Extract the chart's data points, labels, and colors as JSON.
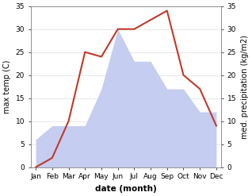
{
  "months": [
    "Jan",
    "Feb",
    "Mar",
    "Apr",
    "May",
    "Jun",
    "Jul",
    "Aug",
    "Sep",
    "Oct",
    "Nov",
    "Dec"
  ],
  "temp": [
    0,
    2,
    10,
    25,
    24,
    30,
    30,
    32,
    34,
    20,
    17,
    9
  ],
  "precip": [
    6,
    9,
    9,
    9,
    17,
    30,
    23,
    23,
    17,
    17,
    12,
    12
  ],
  "temp_color": "#c0392b",
  "precip_fill_color": "#c5cdf0",
  "ylim_left": [
    0,
    35
  ],
  "ylim_right": [
    0,
    35
  ],
  "yticks": [
    0,
    5,
    10,
    15,
    20,
    25,
    30,
    35
  ],
  "ylabel_left": "max temp (C)",
  "ylabel_right": "med. precipitation (kg/m2)",
  "xlabel": "date (month)",
  "bg_color": "#ffffff",
  "tick_fontsize": 6.5,
  "label_fontsize": 7,
  "xlabel_fontsize": 7.5
}
